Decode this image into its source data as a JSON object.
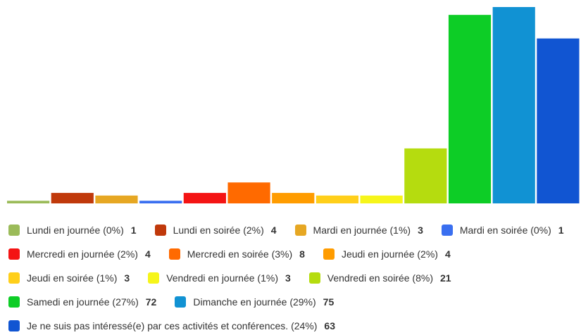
{
  "chart_data": {
    "type": "bar",
    "categories": [
      "Lundi en journée (0%)",
      "Lundi en soirée (2%)",
      "Mardi en journée (1%)",
      "Mardi en soirée (0%)",
      "Mercredi en journée (2%)",
      "Mercredi en soirée (3%)",
      "Jeudi en journée (2%)",
      "Jeudi en soirée (1%)",
      "Vendredi en journée (1%)",
      "Vendredi en soirée (8%)",
      "Samedi en journée (27%)",
      "Dimanche en journée (29%)",
      "Je ne suis pas intéressé(e) par ces activités et conférences. (24%)"
    ],
    "values": [
      1,
      4,
      3,
      1,
      4,
      8,
      4,
      3,
      3,
      21,
      72,
      75,
      63
    ],
    "colors": [
      "#9bbb59",
      "#c0390b",
      "#e6a723",
      "#3a6ff0",
      "#f41414",
      "#ff6a00",
      "#ff9c00",
      "#ffcf1a",
      "#f6f51a",
      "#b5dc0f",
      "#0dcd26",
      "#1192d3",
      "#1155d2"
    ]
  }
}
